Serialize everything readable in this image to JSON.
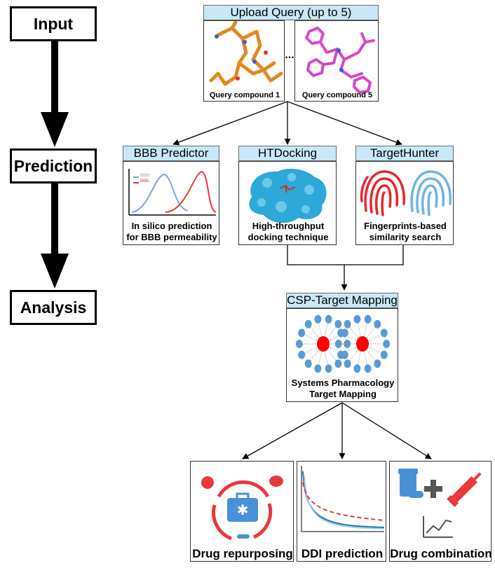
{
  "stages": {
    "input": "Input",
    "prediction": "Prediction",
    "analysis": "Analysis"
  },
  "upload": {
    "title": "Upload Query (up to 5)",
    "compound1": "Query compound 1",
    "compound5": "Query compound 5",
    "ellipsis": "..."
  },
  "bbb": {
    "title": "BBB Predictor",
    "legend_plus": "BBB+",
    "legend_minus": "BBB-",
    "caption_line1": "In silico prediction",
    "caption_line2": "for BBB permeability"
  },
  "htdocking": {
    "title": "HTDocking",
    "caption_line1": "High-throughput",
    "caption_line2": "docking technique"
  },
  "targethunter": {
    "title": "TargetHunter",
    "caption_line1": "Fingerprints-based",
    "caption_line2": "similarity search"
  },
  "csp": {
    "title": "CSP-Target Mapping",
    "caption_line1": "Systems Pharmacology",
    "caption_line2": "Target Mapping"
  },
  "outputs": {
    "repurposing": "Drug repurposing",
    "ddi": "DDI prediction",
    "combination": "Drug combination"
  },
  "colors": {
    "header_fill": "#c9e8f7",
    "orange_molecule": "#e08a1e",
    "magenta_molecule": "#d946c8",
    "blue_node": "#5b9bd5",
    "red_node": "#ff0000",
    "protein": "#2ea8d8",
    "fingerprint_red": "#e8262a",
    "fingerprint_blue": "#6cb4e6",
    "bbb_plus_curve": "#7ba7d8",
    "bbb_minus_curve": "#e8393c"
  }
}
